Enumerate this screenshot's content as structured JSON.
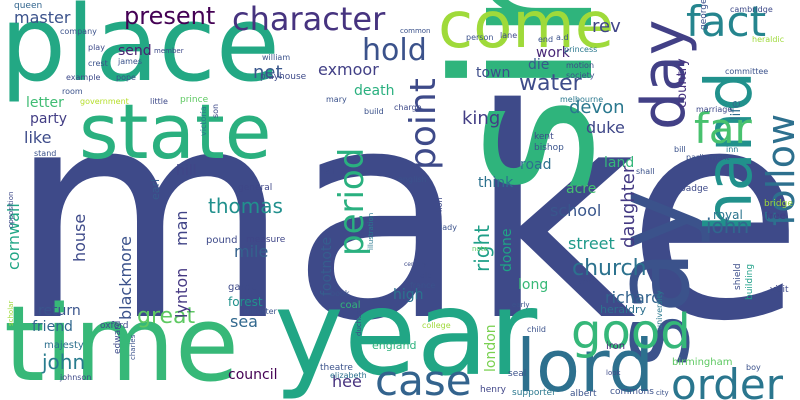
{
  "words": [
    {
      "text": "make",
      "color": "#3e4a89"
    },
    {
      "text": "sir",
      "color": "#2fb47c"
    },
    {
      "text": "place",
      "color": "#23a884"
    },
    {
      "text": "year",
      "color": "#21a685"
    },
    {
      "text": "time",
      "color": "#37b878"
    },
    {
      "text": "state",
      "color": "#2ab07f"
    },
    {
      "text": "come",
      "color": "#9fda3a"
    },
    {
      "text": "say",
      "color": "#3b528b"
    },
    {
      "text": "lord",
      "color": "#2d708e"
    },
    {
      "text": "day",
      "color": "#424086"
    },
    {
      "text": "hand",
      "color": "#21918c"
    },
    {
      "text": "good",
      "color": "#35b779"
    },
    {
      "text": "order",
      "color": "#2a768e"
    },
    {
      "text": "case",
      "color": "#33638d"
    },
    {
      "text": "follow",
      "color": "#2d708e"
    },
    {
      "text": "character",
      "color": "#46337f"
    },
    {
      "text": "fact",
      "color": "#25858e"
    },
    {
      "text": "far",
      "color": "#48c16e"
    },
    {
      "text": "point",
      "color": "#3e4a89"
    },
    {
      "text": "period",
      "color": "#2ab07f"
    },
    {
      "text": "hold",
      "color": "#3b528b"
    },
    {
      "text": "present",
      "color": "#440154"
    },
    {
      "text": "church",
      "color": "#2c728e"
    },
    {
      "text": "water",
      "color": "#3e4c8a"
    },
    {
      "text": "great",
      "color": "#5ec962"
    },
    {
      "text": "right",
      "color": "#1f9f88"
    },
    {
      "text": "thomas",
      "color": "#21908d"
    },
    {
      "text": "john",
      "color": "#287c8e"
    },
    {
      "text": "iohn",
      "color": "#31678e"
    },
    {
      "text": "daughter",
      "color": "#443a83"
    },
    {
      "text": "devon",
      "color": "#2a788e"
    },
    {
      "text": "cornwall",
      "color": "#21a685"
    },
    {
      "text": "blackmore",
      "color": "#3b528b"
    },
    {
      "text": "house",
      "color": "#3e4a89"
    },
    {
      "text": "lynton",
      "color": "#453882"
    },
    {
      "text": "man",
      "color": "#414487"
    },
    {
      "text": "richard",
      "color": "#33638d"
    },
    {
      "text": "exmoor",
      "color": "#424086"
    },
    {
      "text": "master",
      "color": "#3b528b"
    },
    {
      "text": "queen",
      "color": "#32658e"
    },
    {
      "text": "net",
      "color": "#39568c"
    },
    {
      "text": "rev",
      "color": "#404688"
    },
    {
      "text": "king",
      "color": "#433e85"
    },
    {
      "text": "duke",
      "color": "#3f4788"
    },
    {
      "text": "footnote",
      "color": "#365d8d"
    },
    {
      "text": "london",
      "color": "#7ad151"
    },
    {
      "text": "council",
      "color": "#440154"
    },
    {
      "text": "hee",
      "color": "#46327e"
    },
    {
      "text": "sea",
      "color": "#31688e"
    },
    {
      "text": "mile",
      "color": "#34618d"
    },
    {
      "text": "street",
      "color": "#1f9a8a"
    },
    {
      "text": "school",
      "color": "#39568c"
    },
    {
      "text": "long",
      "color": "#38b977"
    },
    {
      "text": "high",
      "color": "#2c728e"
    },
    {
      "text": "doone",
      "color": "#20a386"
    },
    {
      "text": "death",
      "color": "#2ab07f"
    },
    {
      "text": "die",
      "color": "#375a8c"
    },
    {
      "text": "work",
      "color": "#482677"
    },
    {
      "text": "like",
      "color": "#3e4c8a"
    },
    {
      "text": "party",
      "color": "#433e85"
    },
    {
      "text": "letter",
      "color": "#3fbc73"
    },
    {
      "text": "send",
      "color": "#481f70"
    },
    {
      "text": "return",
      "color": "#3a548c"
    },
    {
      "text": "friend",
      "color": "#31688e"
    },
    {
      "text": "land",
      "color": "#35b779"
    },
    {
      "text": "acre",
      "color": "#44bf70"
    },
    {
      "text": "hill",
      "color": "#404688"
    },
    {
      "text": "think",
      "color": "#2c718e"
    },
    {
      "text": "road",
      "color": "#2d708e"
    },
    {
      "text": "town",
      "color": "#3d4d8a"
    },
    {
      "text": "country",
      "color": "#46337f"
    },
    {
      "text": "life",
      "color": "#2f6c8e"
    },
    {
      "text": "royal",
      "color": "#2b748e"
    },
    {
      "text": "earl",
      "color": "#375b8d"
    },
    {
      "text": "forest",
      "color": "#21918c"
    },
    {
      "text": "garden",
      "color": "#3e4a89"
    },
    {
      "text": "coal",
      "color": "#32b67a"
    },
    {
      "text": "heraldry",
      "color": "#2d708e"
    },
    {
      "text": "england",
      "color": "#2db27d"
    },
    {
      "text": "bishop",
      "color": "#3a548c"
    },
    {
      "text": "kent",
      "color": "#3e4a89"
    },
    {
      "text": "edward",
      "color": "#3e4c8a"
    },
    {
      "text": "majesty",
      "color": "#2d708e"
    },
    {
      "text": "oxford",
      "color": "#3e4c8a"
    },
    {
      "text": "birmingham",
      "color": "#5ec962"
    },
    {
      "text": "theatre",
      "color": "#3b528b"
    },
    {
      "text": "elizabeth",
      "color": "#2c718e"
    },
    {
      "text": "henry",
      "color": "#404688"
    },
    {
      "text": "albert",
      "color": "#3b528b"
    },
    {
      "text": "commons",
      "color": "#3b528b"
    },
    {
      "text": "supporter",
      "color": "#2a788e"
    },
    {
      "text": "seal",
      "color": "#3b528b"
    },
    {
      "text": "iron",
      "color": "#482878"
    },
    {
      "text": "pound",
      "color": "#3e4a89"
    },
    {
      "text": "measure",
      "color": "#404688"
    },
    {
      "text": "general",
      "color": "#3f4788"
    },
    {
      "text": "shield",
      "color": "#3d4e8a"
    },
    {
      "text": "building",
      "color": "#1fa088"
    },
    {
      "text": "free",
      "color": "#433e85"
    },
    {
      "text": "bridge",
      "color": "#9fda3a"
    },
    {
      "text": "badge",
      "color": "#3e4a89"
    },
    {
      "text": "visit",
      "color": "#3e4a89"
    },
    {
      "text": "parliament",
      "color": "#3b528b"
    },
    {
      "text": "marriage",
      "color": "#3e4a89"
    },
    {
      "text": "committee",
      "color": "#3b528b"
    },
    {
      "text": "george",
      "color": "#3b528b"
    },
    {
      "text": "cambridge",
      "color": "#3e4a89"
    },
    {
      "text": "heraldic",
      "color": "#9fda3a"
    },
    {
      "text": "playhouse",
      "color": "#3e4a89"
    },
    {
      "text": "william",
      "color": "#3b528b"
    },
    {
      "text": "pope",
      "color": "#3b528b"
    },
    {
      "text": "james",
      "color": "#3b528b"
    },
    {
      "text": "company",
      "color": "#3b528b"
    },
    {
      "text": "play",
      "color": "#3e4a89"
    },
    {
      "text": "crest",
      "color": "#3b528b"
    },
    {
      "text": "example",
      "color": "#3e4a89"
    },
    {
      "text": "room",
      "color": "#3b528b"
    },
    {
      "text": "government",
      "color": "#b5de2b"
    },
    {
      "text": "little",
      "color": "#3e4a89"
    },
    {
      "text": "prince",
      "color": "#5ec962"
    },
    {
      "text": "victoria",
      "color": "#2a788e"
    },
    {
      "text": "son",
      "color": "#3e4a89"
    },
    {
      "text": "mary",
      "color": "#3b528b"
    },
    {
      "text": "build",
      "color": "#3b528b"
    },
    {
      "text": "charge",
      "color": "#3e4a89"
    },
    {
      "text": "common",
      "color": "#3b528b"
    },
    {
      "text": "person",
      "color": "#3b528b"
    },
    {
      "text": "lane",
      "color": "#3e4a89"
    },
    {
      "text": "end",
      "color": "#3b528b"
    },
    {
      "text": "a.d",
      "color": "#3b528b"
    },
    {
      "text": "motion",
      "color": "#3e4a89"
    },
    {
      "text": "society",
      "color": "#3b528b"
    },
    {
      "text": "melbourne",
      "color": "#2a788e"
    },
    {
      "text": "princess",
      "color": "#2a788e"
    },
    {
      "text": "member",
      "color": "#3e4a89"
    },
    {
      "text": "english",
      "color": "#3b528b"
    },
    {
      "text": "hall",
      "color": "#3e4a89"
    },
    {
      "text": "lady",
      "color": "#3b528b"
    },
    {
      "text": "lion",
      "color": "#3e4a89"
    },
    {
      "text": "shall",
      "color": "#3b528b"
    },
    {
      "text": "bill",
      "color": "#3b528b"
    },
    {
      "text": "inn",
      "color": "#2a788e"
    },
    {
      "text": "old",
      "color": "#3e4a89"
    },
    {
      "text": "france",
      "color": "#3b528b"
    },
    {
      "text": "book",
      "color": "#3b528b"
    },
    {
      "text": "duchess",
      "color": "#3e4a89"
    },
    {
      "text": "minister",
      "color": "#3b528b"
    },
    {
      "text": "early",
      "color": "#3b528b"
    },
    {
      "text": "arm",
      "color": "#3e4a89"
    },
    {
      "text": "university",
      "color": "#2a788e"
    },
    {
      "text": "child",
      "color": "#3b528b"
    },
    {
      "text": "college",
      "color": "#9fda3a"
    },
    {
      "text": "boy",
      "color": "#3b528b"
    },
    {
      "text": "city",
      "color": "#3b528b"
    },
    {
      "text": "look",
      "color": "#3e4a89"
    },
    {
      "text": "stand",
      "color": "#3b528b"
    },
    {
      "text": "opposition",
      "color": "#3e4a89"
    },
    {
      "text": "scholar",
      "color": "#9fda3a"
    },
    {
      "text": "johnson",
      "color": "#3e4a89"
    },
    {
      "text": "charles",
      "color": "#3b528b"
    },
    {
      "text": "note",
      "color": "#5ec962"
    },
    {
      "text": "illustration",
      "color": "#2a788e"
    },
    {
      "text": "century",
      "color": "#3e4a89"
    }
  ]
}
